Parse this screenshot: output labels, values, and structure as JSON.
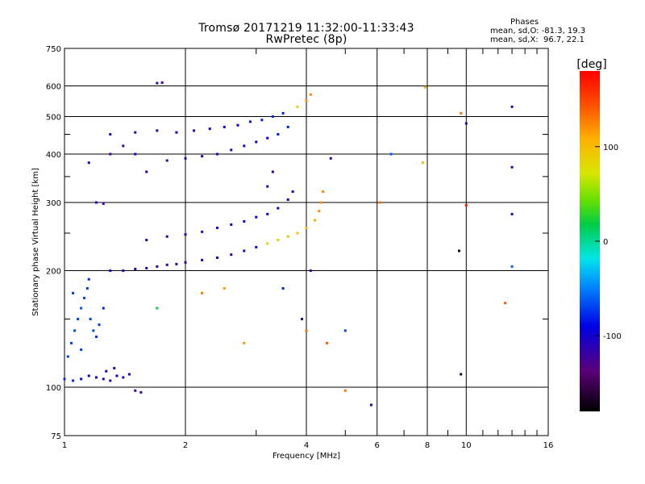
{
  "header": {
    "title_line1": "Tromsø 20171219 11:32:00-11:33:43",
    "title_line2": "RwPretec (8p)",
    "stats_title": "Phases",
    "stats_o": "mean, sd,O: -81.3, 19.3",
    "stats_x": "mean, sd,X:  96.7, 22.1"
  },
  "chart_data": {
    "type": "scatter",
    "title": "Tromsø 20171219 11:32:00-11:33:43",
    "subtitle": "RwPretec (8p)",
    "xlabel": "Frequency [MHz]",
    "ylabel": "Stationary phase Virtual Height [km]",
    "xscale": "log",
    "yscale": "log",
    "xlim": [
      1,
      16
    ],
    "ylim": [
      75,
      750
    ],
    "xticks": [
      1,
      2,
      4,
      6,
      8,
      10,
      16
    ],
    "xtick_labels": [
      "1",
      "2",
      "4",
      "6",
      "8",
      "10",
      "16"
    ],
    "yticks": [
      75,
      100,
      200,
      300,
      400,
      500,
      600,
      750
    ],
    "ytick_labels": [
      "75",
      "100",
      "200",
      "300",
      "400",
      "500",
      "600",
      "750"
    ],
    "grid": true,
    "colorbar": {
      "label": "[deg]",
      "range": [
        -180,
        180
      ],
      "ticks": [
        100,
        0,
        -100
      ],
      "tick_labels": [
        "100",
        "0",
        "-100"
      ]
    },
    "series": [
      {
        "values": [
          {
            "x": 1.0,
            "y": 105,
            "p": -75
          },
          {
            "x": 1.05,
            "y": 104,
            "p": -78
          },
          {
            "x": 1.1,
            "y": 105,
            "p": -85
          },
          {
            "x": 1.15,
            "y": 107,
            "p": -95
          },
          {
            "x": 1.2,
            "y": 106,
            "p": -100
          },
          {
            "x": 1.25,
            "y": 105,
            "p": -105
          },
          {
            "x": 1.3,
            "y": 104,
            "p": -110
          },
          {
            "x": 1.35,
            "y": 107,
            "p": -100
          },
          {
            "x": 1.4,
            "y": 106,
            "p": -110
          },
          {
            "x": 1.02,
            "y": 120,
            "p": -70
          },
          {
            "x": 1.04,
            "y": 130,
            "p": -72
          },
          {
            "x": 1.06,
            "y": 140,
            "p": -68
          },
          {
            "x": 1.08,
            "y": 150,
            "p": -70
          },
          {
            "x": 1.1,
            "y": 160,
            "p": -65
          },
          {
            "x": 1.12,
            "y": 170,
            "p": -70
          },
          {
            "x": 1.14,
            "y": 180,
            "p": -72
          },
          {
            "x": 1.16,
            "y": 150,
            "p": -70
          },
          {
            "x": 1.18,
            "y": 140,
            "p": -68
          },
          {
            "x": 1.2,
            "y": 135,
            "p": -75
          },
          {
            "x": 1.22,
            "y": 145,
            "p": -72
          },
          {
            "x": 1.25,
            "y": 160,
            "p": -80
          },
          {
            "x": 1.15,
            "y": 190,
            "p": -78
          },
          {
            "x": 1.05,
            "y": 175,
            "p": -74
          },
          {
            "x": 1.1,
            "y": 125,
            "p": -70
          },
          {
            "x": 1.27,
            "y": 110,
            "p": -95
          },
          {
            "x": 1.33,
            "y": 112,
            "p": -115
          },
          {
            "x": 1.45,
            "y": 108,
            "p": -105
          },
          {
            "x": 1.5,
            "y": 98,
            "p": -120
          },
          {
            "x": 1.55,
            "y": 97,
            "p": -118
          },
          {
            "x": 1.3,
            "y": 200,
            "p": -105
          },
          {
            "x": 1.4,
            "y": 200,
            "p": -108
          },
          {
            "x": 1.5,
            "y": 202,
            "p": -110
          },
          {
            "x": 1.6,
            "y": 203,
            "p": -112
          },
          {
            "x": 1.7,
            "y": 205,
            "p": -112
          },
          {
            "x": 1.8,
            "y": 207,
            "p": -110
          },
          {
            "x": 1.9,
            "y": 208,
            "p": -108
          },
          {
            "x": 2.0,
            "y": 210,
            "p": -108
          },
          {
            "x": 2.2,
            "y": 213,
            "p": -110
          },
          {
            "x": 2.4,
            "y": 216,
            "p": -108
          },
          {
            "x": 2.6,
            "y": 220,
            "p": -105
          },
          {
            "x": 2.8,
            "y": 225,
            "p": -100
          },
          {
            "x": 3.0,
            "y": 230,
            "p": -95
          },
          {
            "x": 3.2,
            "y": 235,
            "p": 85
          },
          {
            "x": 3.4,
            "y": 240,
            "p": 90
          },
          {
            "x": 3.6,
            "y": 245,
            "p": 95
          },
          {
            "x": 3.8,
            "y": 250,
            "p": 98
          },
          {
            "x": 4.0,
            "y": 258,
            "p": 105
          },
          {
            "x": 4.2,
            "y": 270,
            "p": 110
          },
          {
            "x": 4.3,
            "y": 285,
            "p": 118
          },
          {
            "x": 4.35,
            "y": 300,
            "p": 122
          },
          {
            "x": 4.4,
            "y": 320,
            "p": 125
          },
          {
            "x": 1.6,
            "y": 240,
            "p": -110
          },
          {
            "x": 1.8,
            "y": 245,
            "p": -108
          },
          {
            "x": 2.0,
            "y": 248,
            "p": -110
          },
          {
            "x": 2.2,
            "y": 252,
            "p": -108
          },
          {
            "x": 2.4,
            "y": 258,
            "p": -105
          },
          {
            "x": 2.6,
            "y": 263,
            "p": -100
          },
          {
            "x": 2.8,
            "y": 268,
            "p": -95
          },
          {
            "x": 3.0,
            "y": 275,
            "p": -90
          },
          {
            "x": 3.2,
            "y": 280,
            "p": -95
          },
          {
            "x": 3.4,
            "y": 290,
            "p": -98
          },
          {
            "x": 3.6,
            "y": 305,
            "p": -100
          },
          {
            "x": 3.7,
            "y": 320,
            "p": -105
          },
          {
            "x": 3.2,
            "y": 330,
            "p": -110
          },
          {
            "x": 3.3,
            "y": 360,
            "p": -112
          },
          {
            "x": 1.3,
            "y": 450,
            "p": -110
          },
          {
            "x": 1.5,
            "y": 455,
            "p": -112
          },
          {
            "x": 1.7,
            "y": 460,
            "p": -108
          },
          {
            "x": 1.9,
            "y": 455,
            "p": -110
          },
          {
            "x": 2.1,
            "y": 460,
            "p": -108
          },
          {
            "x": 2.3,
            "y": 465,
            "p": -100
          },
          {
            "x": 2.5,
            "y": 470,
            "p": -95
          },
          {
            "x": 2.7,
            "y": 475,
            "p": -90
          },
          {
            "x": 2.9,
            "y": 485,
            "p": -85
          },
          {
            "x": 3.1,
            "y": 490,
            "p": -80
          },
          {
            "x": 3.3,
            "y": 500,
            "p": -78
          },
          {
            "x": 3.5,
            "y": 510,
            "p": -82
          },
          {
            "x": 1.3,
            "y": 400,
            "p": -115
          },
          {
            "x": 1.5,
            "y": 400,
            "p": -112
          },
          {
            "x": 1.8,
            "y": 385,
            "p": -118
          },
          {
            "x": 2.0,
            "y": 390,
            "p": -115
          },
          {
            "x": 2.2,
            "y": 395,
            "p": -112
          },
          {
            "x": 2.4,
            "y": 400,
            "p": -110
          },
          {
            "x": 2.6,
            "y": 410,
            "p": -105
          },
          {
            "x": 2.8,
            "y": 420,
            "p": -100
          },
          {
            "x": 3.0,
            "y": 430,
            "p": -95
          },
          {
            "x": 3.2,
            "y": 440,
            "p": -90
          },
          {
            "x": 3.4,
            "y": 450,
            "p": -85
          },
          {
            "x": 3.6,
            "y": 470,
            "p": -80
          },
          {
            "x": 3.8,
            "y": 530,
            "p": 85
          },
          {
            "x": 4.0,
            "y": 550,
            "p": 120
          },
          {
            "x": 4.1,
            "y": 570,
            "p": 125
          },
          {
            "x": 1.7,
            "y": 610,
            "p": -115
          },
          {
            "x": 1.75,
            "y": 612,
            "p": -118
          },
          {
            "x": 1.15,
            "y": 380,
            "p": -110
          },
          {
            "x": 1.4,
            "y": 420,
            "p": -112
          },
          {
            "x": 1.6,
            "y": 360,
            "p": -110
          },
          {
            "x": 1.2,
            "y": 300,
            "p": -115
          },
          {
            "x": 1.25,
            "y": 298,
            "p": -120
          },
          {
            "x": 2.2,
            "y": 175,
            "p": 130
          },
          {
            "x": 2.5,
            "y": 180,
            "p": 115
          },
          {
            "x": 2.8,
            "y": 130,
            "p": 120
          },
          {
            "x": 3.5,
            "y": 180,
            "p": -80
          },
          {
            "x": 4.0,
            "y": 140,
            "p": 130
          },
          {
            "x": 4.5,
            "y": 130,
            "p": 140
          },
          {
            "x": 5.0,
            "y": 140,
            "p": -70
          },
          {
            "x": 5.0,
            "y": 98,
            "p": 130
          },
          {
            "x": 5.8,
            "y": 90,
            "p": -100
          },
          {
            "x": 6.1,
            "y": 300,
            "p": 130
          },
          {
            "x": 6.5,
            "y": 400,
            "p": -60
          },
          {
            "x": 7.8,
            "y": 380,
            "p": 100
          },
          {
            "x": 7.9,
            "y": 595,
            "p": 110
          },
          {
            "x": 9.7,
            "y": 510,
            "p": 130
          },
          {
            "x": 9.6,
            "y": 225,
            "p": -170
          },
          {
            "x": 9.7,
            "y": 108,
            "p": -165
          },
          {
            "x": 10.0,
            "y": 295,
            "p": 170
          },
          {
            "x": 10.0,
            "y": 480,
            "p": -110
          },
          {
            "x": 12.5,
            "y": 165,
            "p": 140
          },
          {
            "x": 13.0,
            "y": 530,
            "p": -120
          },
          {
            "x": 13.0,
            "y": 370,
            "p": -115
          },
          {
            "x": 13.0,
            "y": 280,
            "p": -110
          },
          {
            "x": 13.0,
            "y": 205,
            "p": -60
          },
          {
            "x": 4.1,
            "y": 200,
            "p": -120
          },
          {
            "x": 3.9,
            "y": 150,
            "p": -120
          },
          {
            "x": 4.6,
            "y": 390,
            "p": -115
          },
          {
            "x": 1.7,
            "y": 160,
            "p": 20
          }
        ]
      }
    ]
  }
}
